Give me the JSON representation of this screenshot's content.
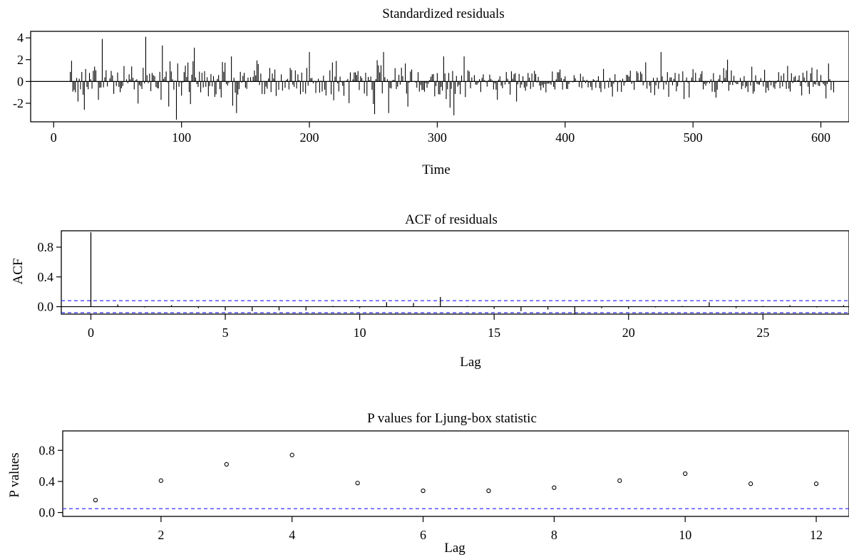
{
  "chart_data": [
    {
      "type": "line",
      "title": "Standardized residuals",
      "xlabel": "Time",
      "ylabel": "",
      "xlim": [
        -18,
        622
      ],
      "ylim": [
        -3.7,
        4.6
      ],
      "x_ticks": [
        0,
        100,
        200,
        300,
        400,
        500,
        600
      ],
      "y_ticks": [
        4,
        2,
        0,
        -2
      ],
      "x_tick_labels": [
        "0",
        "100",
        "200",
        "300",
        "400",
        "500",
        "600"
      ],
      "y_tick_labels": [
        "4",
        "2",
        "0",
        "-2"
      ],
      "reference_line": 0,
      "x_start": 13,
      "x_end": 610,
      "notable_values": [
        {
          "x": 14,
          "y": 1.9
        },
        {
          "x": 24,
          "y": -2.6
        },
        {
          "x": 38,
          "y": 3.9
        },
        {
          "x": 72,
          "y": 4.1
        },
        {
          "x": 85,
          "y": 3.3
        },
        {
          "x": 96,
          "y": -3.5
        },
        {
          "x": 110,
          "y": 3.1
        },
        {
          "x": 143,
          "y": -2.9
        },
        {
          "x": 200,
          "y": 2.7
        },
        {
          "x": 251,
          "y": -3.0
        },
        {
          "x": 258,
          "y": 2.7
        },
        {
          "x": 262,
          "y": -2.9
        },
        {
          "x": 313,
          "y": -3.1
        },
        {
          "x": 475,
          "y": 2.7
        },
        {
          "x": 527,
          "y": 2.0
        },
        {
          "x": 610,
          "y": -1.0
        }
      ],
      "grid": false
    },
    {
      "type": "bar",
      "title": "ACF of residuals",
      "xlabel": "Lag",
      "ylabel": "ACF",
      "xlim": [
        -1.1,
        28.2
      ],
      "ylim": [
        -0.1,
        1.02
      ],
      "x_ticks": [
        0,
        5,
        10,
        15,
        20,
        25
      ],
      "y_ticks": [
        0.0,
        0.4,
        0.8
      ],
      "x_tick_labels": [
        "0",
        "5",
        "10",
        "15",
        "20",
        "25"
      ],
      "y_tick_labels": [
        "0.0",
        "0.4",
        "0.8"
      ],
      "lags": [
        0,
        1,
        2,
        3,
        4,
        5,
        6,
        7,
        8,
        9,
        10,
        11,
        12,
        13,
        14,
        15,
        16,
        17,
        18,
        19,
        20,
        21,
        22,
        23,
        24,
        25,
        26,
        27,
        28
      ],
      "values": [
        1.0,
        0.03,
        -0.01,
        0.02,
        -0.02,
        -0.05,
        -0.06,
        -0.05,
        -0.05,
        0.01,
        -0.02,
        0.06,
        0.05,
        0.13,
        0.01,
        -0.03,
        -0.06,
        -0.04,
        -0.1,
        -0.02,
        -0.03,
        -0.01,
        0.01,
        0.06,
        -0.02,
        0.01,
        0.02,
        -0.01,
        0.02
      ],
      "confidence_band": [
        -0.081,
        0.081
      ],
      "grid": false
    },
    {
      "type": "scatter",
      "title": "P values for Ljung-box statistic",
      "xlabel": "Lag",
      "ylabel": "P values",
      "xlim": [
        0.5,
        12.5
      ],
      "ylim": [
        -0.05,
        1.05
      ],
      "x_ticks": [
        2,
        4,
        6,
        8,
        10,
        12
      ],
      "y_ticks": [
        0.0,
        0.4,
        0.8
      ],
      "x_tick_labels": [
        "2",
        "4",
        "6",
        "8",
        "10",
        "12"
      ],
      "y_tick_labels": [
        "0.0",
        "0.4",
        "0.8"
      ],
      "x": [
        1,
        2,
        3,
        4,
        5,
        6,
        7,
        8,
        9,
        10,
        11,
        12
      ],
      "y": [
        0.16,
        0.41,
        0.62,
        0.74,
        0.38,
        0.28,
        0.28,
        0.32,
        0.41,
        0.5,
        0.37,
        0.37
      ],
      "reference_line": 0.05,
      "grid": false
    }
  ]
}
